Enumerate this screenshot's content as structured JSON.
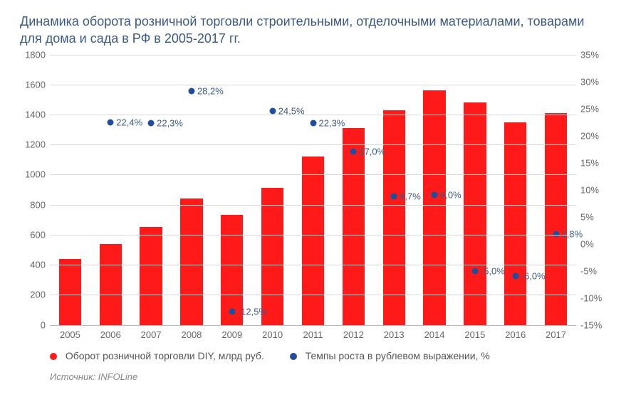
{
  "title": "Динамика оборота розничной торговли строительными, отделочными материалами, товарами для дома и сада в РФ в 2005-2017 гг.",
  "source": "Источник: INFOLine",
  "legend": {
    "bars": "Оборот розничной торговли DIY, млрд руб.",
    "points": "Темпы роста в рублевом выражении, %"
  },
  "colors": {
    "bar": "#ff1a1a",
    "point": "#1f4e9c",
    "grid": "#d9d9d9",
    "axis": "#b7b7b7",
    "title": "#3b5a85",
    "tick_text": "#666666",
    "legend_text": "#555555",
    "source_text": "#888888",
    "point_label": "#3b5a85",
    "background": "#ffffff"
  },
  "fontsizes": {
    "title": 18,
    "tick": 13,
    "legend": 14,
    "source": 13,
    "point_label": 13
  },
  "chart": {
    "type": "bar+scatter-dual-axis",
    "categories": [
      "2005",
      "2006",
      "2007",
      "2008",
      "2009",
      "2010",
      "2011",
      "2012",
      "2013",
      "2014",
      "2015",
      "2016",
      "2017"
    ],
    "bar_values": [
      440,
      540,
      650,
      840,
      730,
      910,
      1120,
      1310,
      1430,
      1560,
      1480,
      1350,
      1410
    ],
    "growth_values": [
      null,
      22.4,
      22.3,
      28.2,
      -12.5,
      24.5,
      22.3,
      17.0,
      8.7,
      9.0,
      -5.0,
      -6.0,
      1.8
    ],
    "growth_labels": [
      null,
      "22,4%",
      "22,3%",
      "28,2%",
      "-12,5%",
      "24,5%",
      "22,3%",
      "17,0%",
      "8,7%",
      "9,0%",
      "-5,0%",
      "-6,0%",
      "1,8%"
    ],
    "left_axis": {
      "min": 0,
      "max": 1800,
      "step": 200
    },
    "right_axis": {
      "min": -15,
      "max": 35,
      "step": 5
    },
    "bar_width_ratio": 0.55
  }
}
